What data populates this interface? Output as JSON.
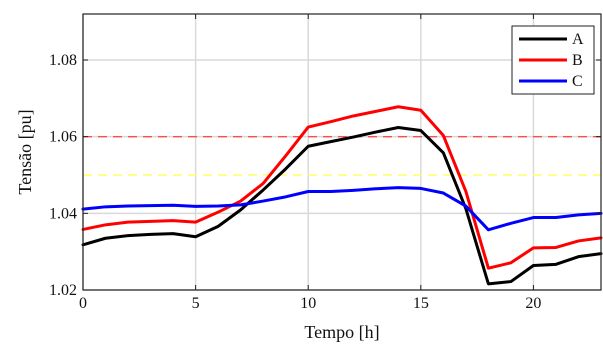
{
  "chart_data": {
    "type": "line",
    "title": "",
    "xlabel": "Tempo [h]",
    "ylabel": "Tensão [pu]",
    "xlim": [
      0,
      23
    ],
    "ylim": [
      1.02,
      1.092
    ],
    "xticks": [
      0,
      5,
      10,
      15,
      20
    ],
    "yticks": [
      1.02,
      1.04,
      1.06,
      1.08
    ],
    "grid": true,
    "legend_position": "top-right",
    "x": [
      0,
      1,
      2,
      3,
      4,
      5,
      6,
      7,
      8,
      9,
      10,
      11,
      12,
      13,
      14,
      15,
      16,
      17,
      18,
      19,
      20,
      21,
      22,
      23
    ],
    "series": [
      {
        "name": "A",
        "color": "#000000",
        "values": [
          1.0318,
          1.0335,
          1.0342,
          1.0345,
          1.0347,
          1.0339,
          1.0366,
          1.0409,
          1.0461,
          1.0516,
          1.0575,
          1.0587,
          1.0599,
          1.0612,
          1.0624,
          1.0616,
          1.0558,
          1.0412,
          1.0216,
          1.0222,
          1.0264,
          1.0267,
          1.0287,
          1.0295
        ]
      },
      {
        "name": "B",
        "color": "#ff0000",
        "values": [
          1.0358,
          1.037,
          1.0377,
          1.0379,
          1.0381,
          1.0377,
          1.0403,
          1.0432,
          1.0478,
          1.055,
          1.0625,
          1.0639,
          1.0654,
          1.0666,
          1.0678,
          1.0669,
          1.0603,
          1.0457,
          1.0257,
          1.0271,
          1.031,
          1.0311,
          1.0328,
          1.0336
        ]
      },
      {
        "name": "C",
        "color": "#0000ff",
        "values": [
          1.0411,
          1.0417,
          1.0419,
          1.042,
          1.0421,
          1.0418,
          1.0419,
          1.0422,
          1.0432,
          1.0443,
          1.0457,
          1.0457,
          1.046,
          1.0464,
          1.0467,
          1.0465,
          1.0453,
          1.0419,
          1.0357,
          1.0374,
          1.0389,
          1.0389,
          1.0396,
          1.04
        ]
      }
    ],
    "reference_lines": [
      {
        "y": 1.06,
        "color": "#ff4d4d",
        "style": "dashed"
      },
      {
        "y": 1.05,
        "color": "#ffff66",
        "style": "dashed"
      }
    ],
    "colors": {
      "grid": "#d9d9d9",
      "axes": "#222222",
      "background": "#ffffff"
    }
  }
}
